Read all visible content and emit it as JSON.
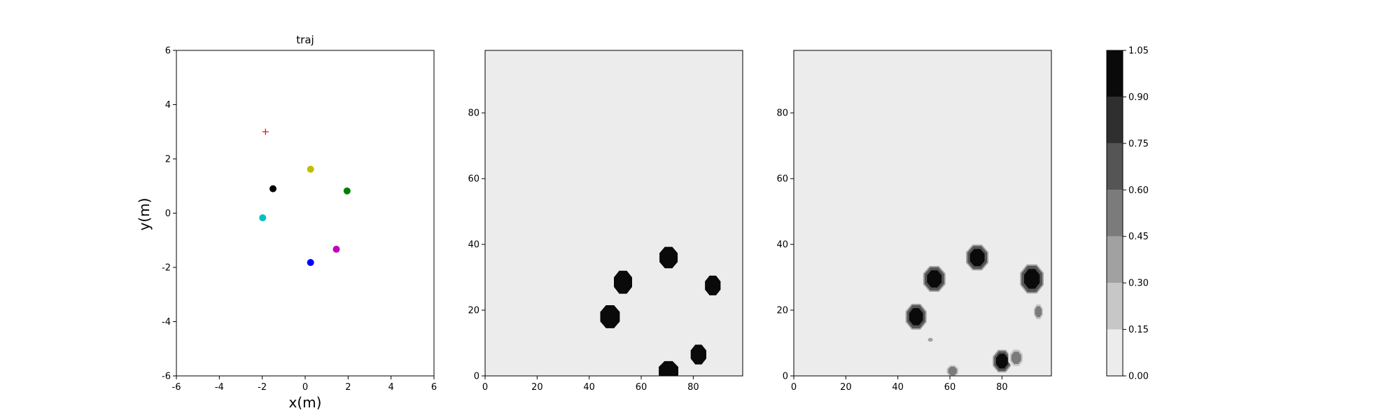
{
  "chart_data": [
    {
      "type": "scatter",
      "title": "traj",
      "xlabel": "x(m)",
      "ylabel": "y(m)",
      "xlim": [
        -6,
        6
      ],
      "ylim": [
        -6,
        6
      ],
      "xticks": [
        -6,
        -4,
        -2,
        0,
        2,
        4,
        6
      ],
      "yticks": [
        -6,
        -4,
        -2,
        0,
        2,
        4,
        6
      ],
      "points": [
        {
          "x": 0.25,
          "y": 1.62,
          "color": "#bfbf00",
          "marker": "circle"
        },
        {
          "x": 1.95,
          "y": 0.82,
          "color": "#008000",
          "marker": "circle"
        },
        {
          "x": -1.5,
          "y": 0.9,
          "color": "#000000",
          "marker": "circle"
        },
        {
          "x": -1.98,
          "y": -0.17,
          "color": "#00bfbf",
          "marker": "circle"
        },
        {
          "x": 1.45,
          "y": -1.33,
          "color": "#bf00bf",
          "marker": "circle"
        },
        {
          "x": 0.25,
          "y": -1.82,
          "color": "#0000ff",
          "marker": "circle"
        },
        {
          "x": -1.85,
          "y": 3.0,
          "color": "#ff0000",
          "marker": "plus"
        }
      ]
    },
    {
      "type": "heatmap",
      "xlim": [
        0,
        99
      ],
      "ylim": [
        0,
        99
      ],
      "xticks": [
        0,
        20,
        40,
        60,
        80
      ],
      "yticks": [
        0,
        20,
        40,
        60,
        80
      ],
      "background_value": 0.0,
      "blobs": [
        {
          "x": 70.5,
          "y": 36,
          "w": 7,
          "h": 6.5,
          "value": 1.0
        },
        {
          "x": 53,
          "y": 28.5,
          "w": 7,
          "h": 7,
          "value": 1.0
        },
        {
          "x": 87.5,
          "y": 27.5,
          "w": 6,
          "h": 6,
          "value": 1.0
        },
        {
          "x": 48,
          "y": 18,
          "w": 7.5,
          "h": 7,
          "value": 1.0
        },
        {
          "x": 82,
          "y": 6.5,
          "w": 6,
          "h": 6,
          "value": 1.0
        },
        {
          "x": 70.5,
          "y": 1.5,
          "w": 7.5,
          "h": 6,
          "value": 1.0
        }
      ]
    },
    {
      "type": "heatmap",
      "xlim": [
        0,
        99
      ],
      "ylim": [
        0,
        99
      ],
      "xticks": [
        0,
        20,
        40,
        60,
        80
      ],
      "yticks": [
        0,
        20,
        40,
        60,
        80
      ],
      "background_value": 0.0,
      "blobs": [
        {
          "x": 70.5,
          "y": 36,
          "w": 7.5,
          "h": 7,
          "value": 1.0
        },
        {
          "x": 54,
          "y": 29.5,
          "w": 7.5,
          "h": 7,
          "value": 1.0
        },
        {
          "x": 47,
          "y": 18,
          "w": 7,
          "h": 7,
          "value": 1.0
        },
        {
          "x": 91.5,
          "y": 29.5,
          "w": 8,
          "h": 8,
          "value": 0.95
        },
        {
          "x": 94,
          "y": 19.5,
          "w": 3.5,
          "h": 4.5,
          "value": 0.45
        },
        {
          "x": 80,
          "y": 4.5,
          "w": 6,
          "h": 6,
          "value": 0.9
        },
        {
          "x": 85.5,
          "y": 5.5,
          "w": 5,
          "h": 5,
          "value": 0.55
        },
        {
          "x": 61,
          "y": 1.5,
          "w": 4.5,
          "h": 3.5,
          "value": 0.5
        },
        {
          "x": 52.5,
          "y": 11,
          "w": 2.5,
          "h": 1.5,
          "value": 0.3
        }
      ]
    }
  ],
  "colorbar": {
    "ticks": [
      "0.00",
      "0.15",
      "0.30",
      "0.45",
      "0.60",
      "0.75",
      "0.90",
      "1.05"
    ],
    "levels": [
      0.0,
      0.15,
      0.3,
      0.45,
      0.6,
      0.75,
      0.9,
      1.05
    ],
    "colors": [
      "#ececec",
      "#c7c7c7",
      "#a1a1a1",
      "#7b7b7b",
      "#555555",
      "#2f2f2f",
      "#0a0a0a"
    ]
  }
}
